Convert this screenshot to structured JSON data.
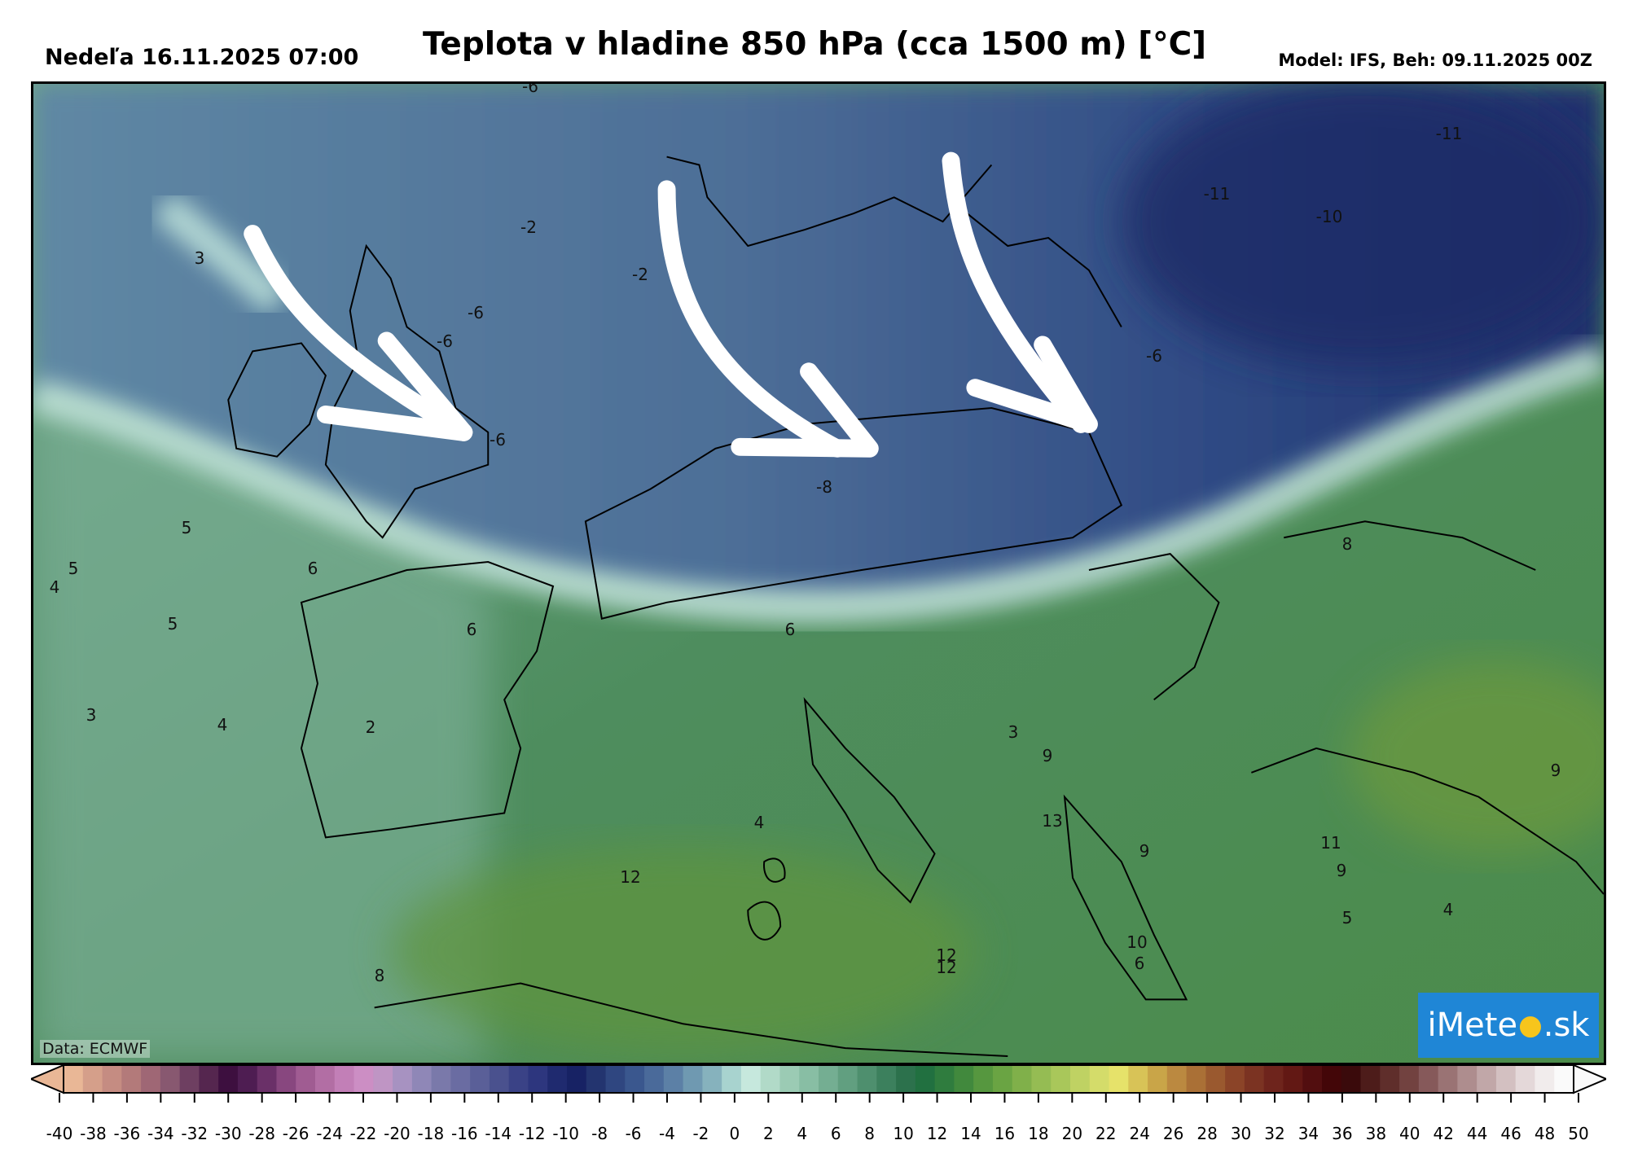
{
  "header": {
    "date_label": "Nedeľa 16.11.2025 07:00",
    "title": "Teplota v hladine 850 hPa (cca 1500 m) [°C]",
    "model_label": "Model: IFS, Beh: 09.11.2025 00Z"
  },
  "map": {
    "credit": "Data: ECMWF",
    "logo": {
      "prefix": "iMete",
      "sun": "●",
      "suffix": ".sk"
    },
    "temperature_labels": [
      "-6",
      "-2",
      "-2",
      "-6",
      "-6",
      "-6",
      "3",
      "-11",
      "-11",
      "-10",
      "-6",
      "-8",
      "5",
      "5",
      "4",
      "6",
      "5",
      "6",
      "6",
      "8",
      "3",
      "4",
      "2",
      "3",
      "9",
      "9",
      "13",
      "4",
      "11",
      "9",
      "9",
      "12",
      "10",
      "5",
      "4",
      "6",
      "12",
      "12",
      "8"
    ],
    "arrows": {
      "color": "#ffffff",
      "count": 3,
      "direction": "north-west to south-east"
    }
  },
  "colorbar": {
    "unit": "°C",
    "min": -40,
    "max": 50,
    "step": 2,
    "tick_labels": [
      "-40",
      "-38",
      "-36",
      "-34",
      "-32",
      "-30",
      "-28",
      "-26",
      "-24",
      "-22",
      "-20",
      "-18",
      "-16",
      "-14",
      "-12",
      "-10",
      "-8",
      "-6",
      "-4",
      "-2",
      "0",
      "2",
      "4",
      "6",
      "8",
      "10",
      "12",
      "14",
      "16",
      "18",
      "20",
      "22",
      "24",
      "26",
      "28",
      "30",
      "32",
      "34",
      "36",
      "38",
      "40",
      "42",
      "44",
      "46",
      "48",
      "50"
    ],
    "colors": [
      "#e9b796",
      "#d59f8a",
      "#c58c82",
      "#b37a7a",
      "#9f6775",
      "#885870",
      "#6e3f61",
      "#55264f",
      "#3d0f3f",
      "#4e1d52",
      "#6a3068",
      "#88477f",
      "#a05c92",
      "#b26ea4",
      "#c27fb7",
      "#cc8ec4",
      "#bf95c4",
      "#a792c1",
      "#8f87b7",
      "#7a79aa",
      "#6a6ca2",
      "#5a5f98",
      "#4a518e",
      "#3a4286",
      "#2d367e",
      "#1f2a6f",
      "#172264",
      "#23346f",
      "#2f4680",
      "#3a578e",
      "#4a6a9a",
      "#5c80a6",
      "#6f99b1",
      "#86b2bd",
      "#a8d3cf",
      "#c6e8dd",
      "#b1dac8",
      "#9bcbb4",
      "#88bea4",
      "#74ae92",
      "#619f80",
      "#4e8f6e",
      "#3c805d",
      "#2c714c",
      "#217040",
      "#2f7c3e",
      "#41893d",
      "#56973f",
      "#6aa443",
      "#80b04a",
      "#95bc53",
      "#a9c75a",
      "#bfd263",
      "#d4dc6a",
      "#e6e26a",
      "#d8c357",
      "#c9a548",
      "#bb8940",
      "#aa7036",
      "#9a592f",
      "#8b4428",
      "#7b3322",
      "#6e241c",
      "#621814",
      "#520e0f",
      "#430608",
      "#3a0a0b",
      "#4d1c1a",
      "#5f2e2b",
      "#724240",
      "#86595a",
      "#9a7374",
      "#ae8d8e",
      "#c1a7a8",
      "#d3c0c1",
      "#e4d8d9",
      "#f1ecec",
      "#fafafa"
    ]
  }
}
